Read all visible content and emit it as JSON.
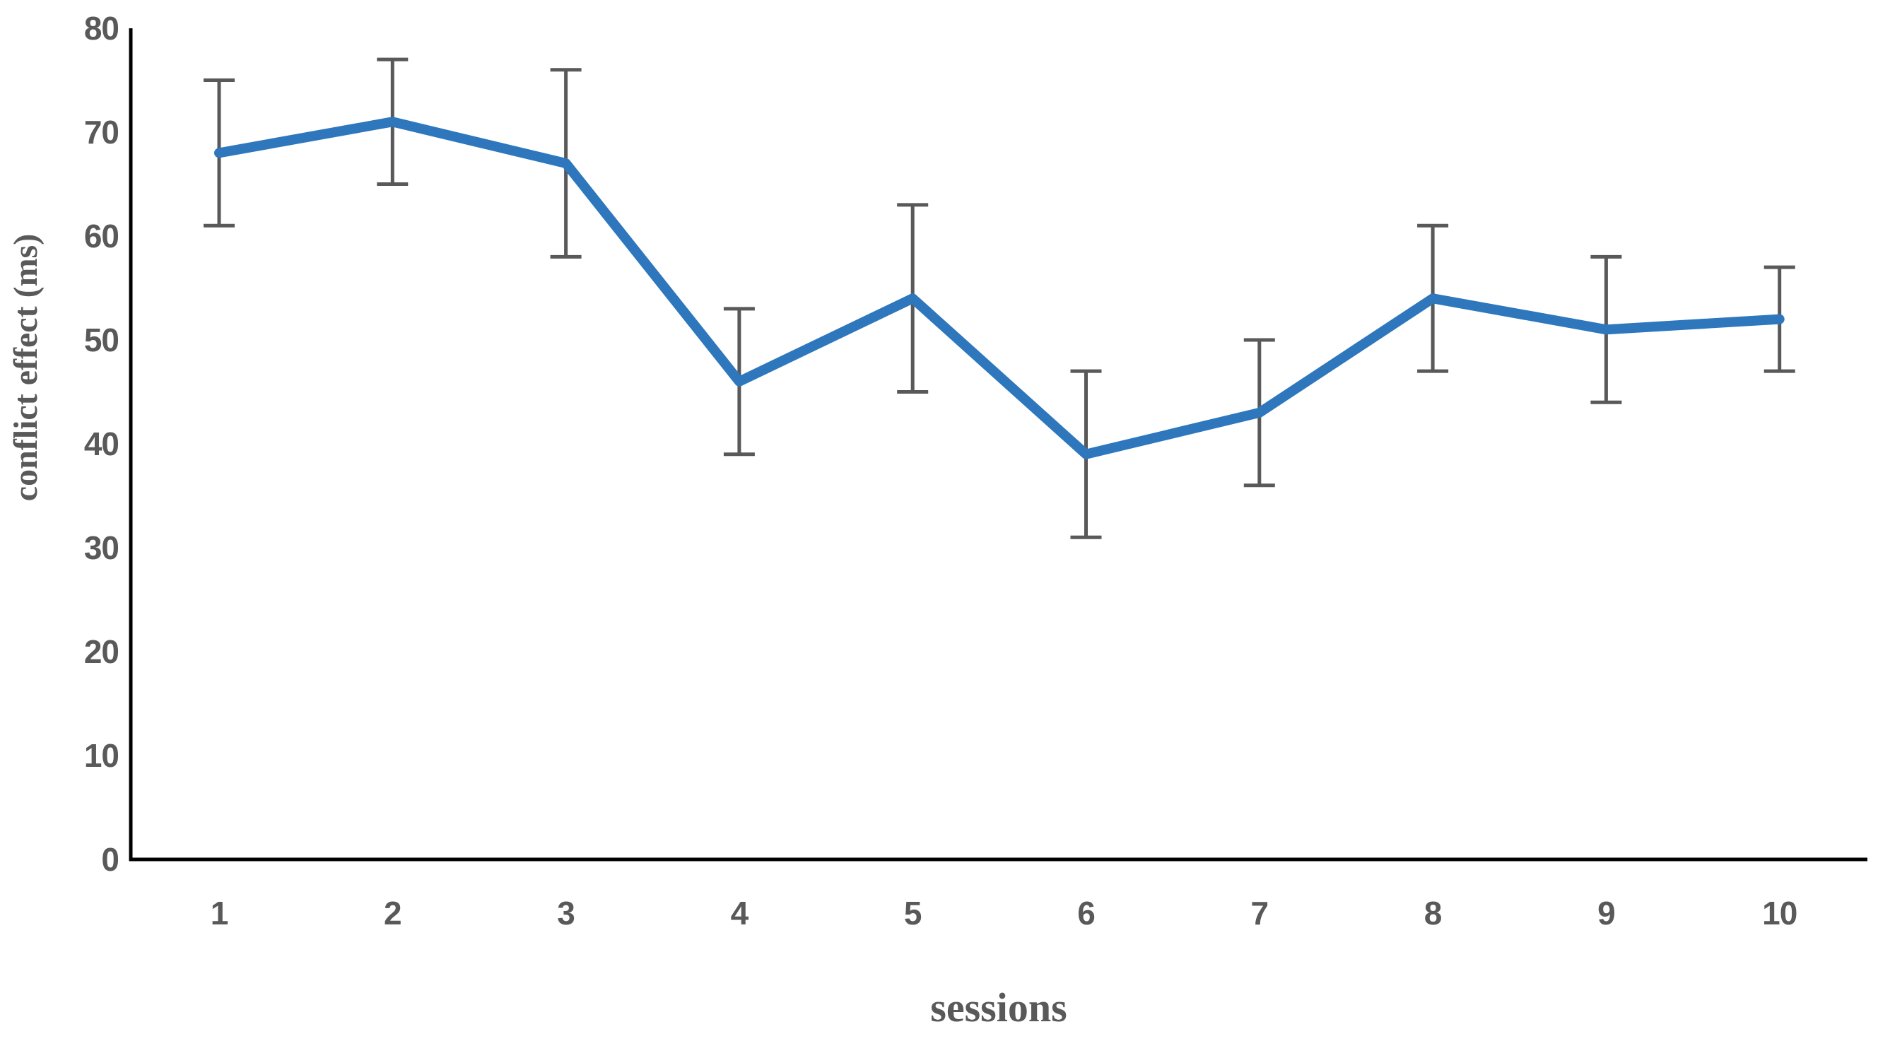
{
  "chart_data": {
    "type": "line",
    "title": "",
    "xlabel": "sessions",
    "ylabel": "conflict effect (ms)",
    "categories": [
      1,
      2,
      3,
      4,
      5,
      6,
      7,
      8,
      9,
      10
    ],
    "series": [
      {
        "name": "conflict effect",
        "values": [
          68,
          71,
          67,
          46,
          54,
          39,
          43,
          54,
          51,
          52
        ],
        "error_plus": [
          7,
          6,
          9,
          7,
          9,
          8,
          7,
          7,
          7,
          5
        ],
        "error_minus": [
          7,
          6,
          9,
          7,
          9,
          8,
          7,
          7,
          7,
          5
        ]
      }
    ],
    "ylim": [
      0,
      80
    ],
    "ytick_step": 10,
    "yticks": [
      0,
      10,
      20,
      30,
      40,
      50,
      60,
      70,
      80
    ],
    "grid": false,
    "legend": "none",
    "colors": {
      "line": "#2E77BC",
      "error_bar": "#595959",
      "axis": "#000000",
      "tick_label": "#595959",
      "axis_title": "#595959"
    }
  }
}
